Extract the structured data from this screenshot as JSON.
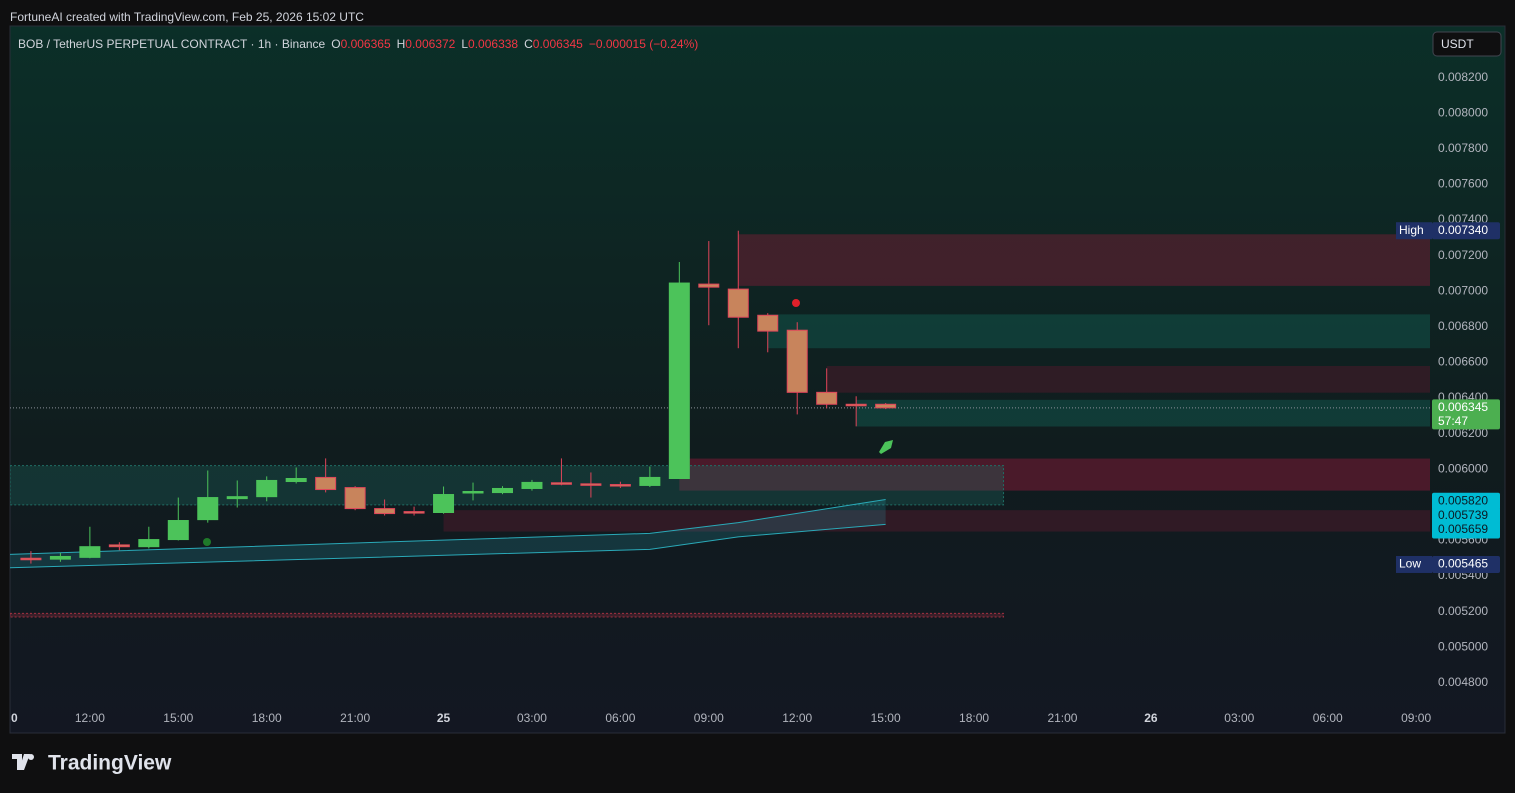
{
  "attribution": "FortuneAI created with TradingView.com, Feb 25, 2026 15:02 UTC",
  "logo": "TradingView",
  "currency_button": "USDT",
  "chart_data": {
    "type": "candlestick",
    "title": "BOB / TetherUS PERPETUAL CONTRACT · 1h · Binance",
    "legend": [
      {
        "label": "O",
        "value": "0.006365"
      },
      {
        "label": "H",
        "value": "0.006372"
      },
      {
        "label": "L",
        "value": "0.006338"
      },
      {
        "label": "C",
        "value": "0.006345"
      }
    ],
    "change": "−0.000015 (−0.24%)",
    "x": [
      10,
      11,
      12,
      13,
      14,
      15,
      16,
      17,
      18,
      19,
      20,
      21,
      22,
      23,
      24,
      25,
      26,
      27,
      28,
      29,
      30,
      31,
      32,
      33,
      34,
      35,
      36,
      37,
      38,
      39
    ],
    "open": [
      0.0055,
      0.005495,
      0.005505,
      0.005575,
      0.005565,
      0.005605,
      0.005717,
      0.005835,
      0.005846,
      0.005931,
      0.005954,
      0.005897,
      0.005779,
      0.005762,
      0.005757,
      0.00587,
      0.005869,
      0.005892,
      0.005924,
      0.005918,
      0.005914,
      0.005909,
      0.005948,
      0.00704,
      0.007012,
      0.006865,
      0.006781,
      0.006432,
      0.006365,
      0.006365
    ],
    "high": [
      0.00554,
      0.00553,
      0.005677,
      0.00559,
      0.005677,
      0.005841,
      0.005993,
      0.005937,
      0.00596,
      0.00601,
      0.006061,
      0.005905,
      0.00583,
      0.00579,
      0.005903,
      0.005925,
      0.005905,
      0.00594,
      0.006061,
      0.005982,
      0.00593,
      0.006015,
      0.007164,
      0.007282,
      0.00734,
      0.006877,
      0.006826,
      0.006567,
      0.00641,
      0.006372
    ],
    "low": [
      0.00547,
      0.00548,
      0.0055,
      0.005545,
      0.005555,
      0.0056,
      0.0057,
      0.005785,
      0.00582,
      0.00592,
      0.00587,
      0.00577,
      0.00574,
      0.00574,
      0.00575,
      0.005825,
      0.00586,
      0.00588,
      0.00591,
      0.005841,
      0.005895,
      0.0059,
      0.005948,
      0.006809,
      0.00668,
      0.006657,
      0.006308,
      0.006342,
      0.006241,
      0.006338
    ],
    "close": [
      0.005495,
      0.00551,
      0.005565,
      0.005565,
      0.005605,
      0.005712,
      0.005841,
      0.005846,
      0.005937,
      0.005948,
      0.005886,
      0.005779,
      0.005751,
      0.005757,
      0.005858,
      0.005875,
      0.005892,
      0.005926,
      0.005918,
      0.005914,
      0.00591,
      0.005954,
      0.007046,
      0.007023,
      0.006854,
      0.006776,
      0.006432,
      0.006365,
      0.00636,
      0.006345
    ],
    "up_color": "#4cc35a",
    "down_color": "#c8845c",
    "down_border": "#e0455a",
    "xlim": [
      9.29,
      57.47
    ],
    "xticks": [
      {
        "value": 9,
        "label": "0"
      },
      {
        "value": 12,
        "label": "12:00"
      },
      {
        "value": 15,
        "label": "15:00"
      },
      {
        "value": 18,
        "label": "18:00"
      },
      {
        "value": 21,
        "label": "21:00"
      },
      {
        "value": 24,
        "label": "25"
      },
      {
        "value": 27,
        "label": "03:00"
      },
      {
        "value": 30,
        "label": "06:00"
      },
      {
        "value": 33,
        "label": "09:00"
      },
      {
        "value": 36,
        "label": "12:00"
      },
      {
        "value": 39,
        "label": "15:00"
      },
      {
        "value": 42,
        "label": "18:00"
      },
      {
        "value": 45,
        "label": "21:00"
      },
      {
        "value": 48,
        "label": "26"
      },
      {
        "value": 51,
        "label": "03:00"
      },
      {
        "value": 54,
        "label": "06:00"
      },
      {
        "value": 57,
        "label": "09:00"
      }
    ],
    "ylim": [
      0.00467,
      0.00849
    ],
    "yticks": [
      {
        "value": 0.0048,
        "label": "0.004800"
      },
      {
        "value": 0.005,
        "label": "0.005000"
      },
      {
        "value": 0.0052,
        "label": "0.005200"
      },
      {
        "value": 0.0054,
        "label": "0.005400"
      },
      {
        "value": 0.0056,
        "label": "0.005600"
      },
      {
        "value": 0.0058,
        "label": "0.005800"
      },
      {
        "value": 0.006,
        "label": "0.006000"
      },
      {
        "value": 0.0062,
        "label": "0.006200"
      },
      {
        "value": 0.0064,
        "label": "0.006400"
      },
      {
        "value": 0.0066,
        "label": "0.006600"
      },
      {
        "value": 0.0068,
        "label": "0.006800"
      },
      {
        "value": 0.007,
        "label": "0.007000"
      },
      {
        "value": 0.0072,
        "label": "0.007200"
      },
      {
        "value": 0.0074,
        "label": "0.007400"
      },
      {
        "value": 0.0076,
        "label": "0.007600"
      },
      {
        "value": 0.0078,
        "label": "0.007800"
      },
      {
        "value": 0.008,
        "label": "0.008000"
      },
      {
        "value": 0.0082,
        "label": "0.008200"
      }
    ],
    "zones": [
      {
        "x_from": 34,
        "bottom": 0.00703,
        "top": 0.00732,
        "color": "#6b1f33"
      },
      {
        "x_from": 35,
        "bottom": 0.00668,
        "top": 0.00687,
        "color": "#12544a"
      },
      {
        "x_from": 37,
        "bottom": 0.00643,
        "top": 0.00658,
        "color": "#4a1a2a"
      },
      {
        "x_from": 38,
        "bottom": 0.00624,
        "top": 0.00639,
        "color": "#12544a"
      },
      {
        "x_from": 32,
        "bottom": 0.00588,
        "top": 0.00606,
        "color": "#7a1a35"
      },
      {
        "x_from": 24,
        "bottom": 0.00565,
        "top": 0.00577,
        "color": "#4a1a2a"
      },
      {
        "x_from": 9.29,
        "x_to": 43,
        "bottom": 0.0058,
        "top": 0.00602,
        "color": "#1f6f66"
      },
      {
        "x_from": 9.29,
        "x_to": 43,
        "bottom": 0.00517,
        "top": 0.00519,
        "color": "#a03040"
      }
    ],
    "ribbon": {
      "x": [
        9,
        31,
        34,
        39
      ],
      "upper": [
        0.00552,
        0.00564,
        0.0057,
        0.00583
      ],
      "lower": [
        0.005445,
        0.00555,
        0.00562,
        0.00569
      ],
      "color": "#2aa9b8"
    },
    "price_tags": [
      {
        "name": "High",
        "value": 0.00734,
        "value_label": "0.007340",
        "color": "#1f3066"
      },
      {
        "value": 0.006345,
        "value_label": "0.006345",
        "countdown": "57:47",
        "color": "#4caf50"
      },
      {
        "value": 0.00582,
        "value_label": "0.005820",
        "color": "#00bcd4"
      },
      {
        "value": 0.005739,
        "value_label": "0.005739",
        "color": "#00bcd4"
      },
      {
        "value": 0.005659,
        "value_label": "0.005659",
        "color": "#00bcd4"
      },
      {
        "name": "Low",
        "value": 0.005465,
        "value_label": "0.005465",
        "color": "#1f3066"
      }
    ]
  }
}
